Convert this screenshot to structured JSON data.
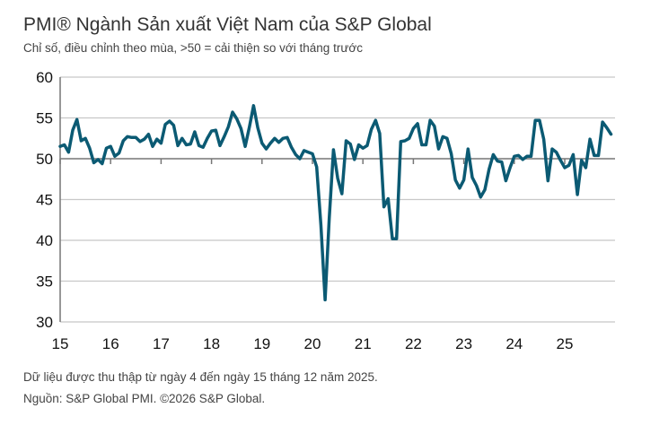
{
  "chart_data": {
    "type": "line",
    "title": "PMI® Ngành Sản xuất Việt Nam của S&P Global",
    "subtitle": "Chỉ số, điều chỉnh theo mùa, >50 = cải thiện so với tháng trước",
    "x_start": "2015-01",
    "x_end": "2025-12",
    "x_frequency": "monthly",
    "x_tick_labels": [
      "15",
      "16",
      "17",
      "18",
      "19",
      "20",
      "21",
      "22",
      "23",
      "24",
      "25"
    ],
    "y_tick_labels": [
      "30",
      "35",
      "40",
      "45",
      "50",
      "55",
      "60"
    ],
    "ylim": [
      30,
      60
    ],
    "reference_line": 50,
    "grid": "horizontal",
    "line_color": "#0b5a73",
    "values": [
      51.5,
      51.7,
      50.8,
      53.5,
      54.8,
      52.2,
      52.5,
      51.3,
      49.5,
      49.9,
      49.4,
      51.3,
      51.5,
      50.3,
      50.7,
      52.2,
      52.7,
      52.6,
      52.6,
      52.1,
      52.4,
      53.0,
      51.5,
      52.4,
      51.9,
      54.2,
      54.6,
      54.1,
      51.6,
      52.5,
      51.7,
      51.8,
      53.3,
      51.6,
      51.4,
      52.5,
      53.4,
      53.5,
      51.6,
      52.7,
      53.9,
      55.7,
      54.9,
      53.7,
      51.5,
      53.9,
      56.5,
      53.8,
      51.9,
      51.2,
      51.9,
      52.5,
      52.0,
      52.5,
      52.6,
      51.4,
      50.5,
      50.0,
      51.0,
      50.8,
      50.6,
      49.0,
      41.9,
      32.7,
      42.7,
      51.1,
      47.6,
      45.7,
      52.2,
      51.8,
      49.9,
      51.7,
      51.3,
      51.6,
      53.6,
      54.7,
      53.1,
      44.1,
      45.1,
      40.2,
      40.2,
      52.1,
      52.2,
      52.5,
      53.7,
      54.3,
      51.7,
      51.7,
      54.7,
      54.0,
      51.2,
      52.7,
      52.5,
      50.6,
      47.4,
      46.4,
      47.4,
      51.2,
      47.7,
      46.7,
      45.3,
      46.2,
      48.7,
      50.5,
      49.7,
      49.6,
      47.3,
      48.9,
      50.3,
      50.4,
      49.9,
      50.3,
      50.3,
      54.7,
      54.7,
      52.4,
      47.3,
      51.2,
      50.8,
      49.8,
      48.9,
      49.2,
      50.5,
      45.6,
      49.8,
      48.9,
      52.4,
      50.4,
      50.4,
      54.5,
      53.8,
      53.0
    ]
  },
  "footnotes": {
    "note": "Dữ liệu được thu thập từ ngày 4 đến ngày 15 tháng 12 năm 2025.",
    "source": "Nguồn: S&P Global PMI. ©2026 S&P Global."
  }
}
